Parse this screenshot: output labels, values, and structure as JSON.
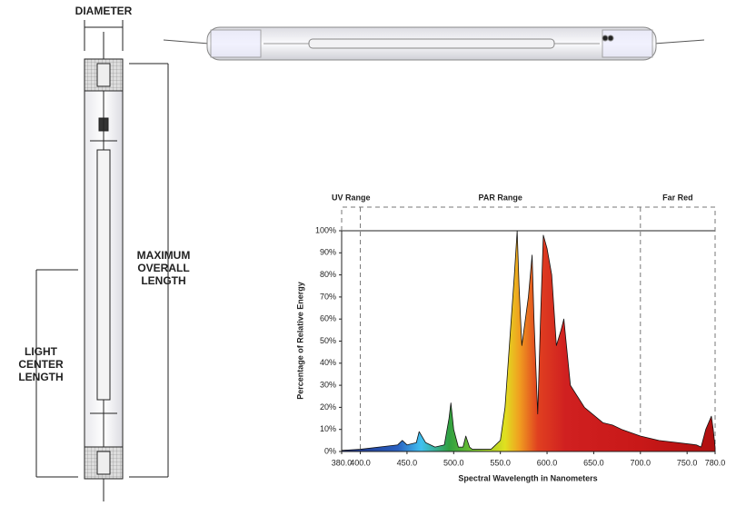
{
  "diagram": {
    "diameter_label": "DIAMETER",
    "overall_label": [
      "MAXIMUM",
      "OVERALL",
      "LENGTH"
    ],
    "center_label": [
      "LIGHT",
      "CENTER",
      "LENGTH"
    ]
  },
  "chart_data": {
    "type": "area",
    "x_label": "Spectral Wavelength in Nanometers",
    "y_label": "Percentage of Relative Energy",
    "regions": [
      {
        "name": "UV Range",
        "start": 380,
        "end": 400
      },
      {
        "name": "PAR Range",
        "start": 400,
        "end": 700
      },
      {
        "name": "Far Red",
        "start": 700,
        "end": 780
      }
    ],
    "x": [
      380,
      400,
      420,
      440,
      445,
      450,
      460,
      463,
      470,
      480,
      490,
      495,
      497,
      500,
      505,
      510,
      513,
      517,
      520,
      540,
      550,
      555,
      560,
      565,
      568,
      570,
      573,
      580,
      584,
      586,
      590,
      593,
      596,
      600,
      605,
      610,
      615,
      618,
      625,
      640,
      660,
      670,
      680,
      700,
      720,
      740,
      760,
      765,
      770,
      776,
      778,
      780
    ],
    "series": [
      {
        "name": "Relative Energy",
        "values": [
          0.5,
          1,
          2,
          3,
          5,
          3,
          4,
          9,
          4,
          2,
          3,
          15,
          22,
          10,
          2,
          2,
          7,
          2,
          1,
          1,
          5,
          20,
          50,
          80,
          100,
          75,
          48,
          70,
          89,
          60,
          17,
          60,
          98,
          92,
          80,
          48,
          55,
          60,
          30,
          20,
          13,
          12,
          10,
          7,
          5,
          4,
          3,
          2,
          10,
          16,
          10,
          2
        ]
      }
    ],
    "colors": [
      [
        380,
        "#1a2a80"
      ],
      [
        440,
        "#2a60c0"
      ],
      [
        465,
        "#40c0f0"
      ],
      [
        495,
        "#30a040"
      ],
      [
        520,
        "#70c030"
      ],
      [
        555,
        "#e0e020"
      ],
      [
        570,
        "#f0a020"
      ],
      [
        590,
        "#e04020"
      ],
      [
        620,
        "#d02020"
      ],
      [
        700,
        "#c81818"
      ],
      [
        780,
        "#b01010"
      ]
    ],
    "xlim": [
      380,
      780
    ],
    "xticks": [
      {
        "value": 380,
        "label": "380.0"
      },
      {
        "value": 400,
        "label": "400.0"
      },
      {
        "value": 450,
        "label": "450.0"
      },
      {
        "value": 500,
        "label": "500.0"
      },
      {
        "value": 550,
        "label": "550.0"
      },
      {
        "value": 600,
        "label": "600.0"
      },
      {
        "value": 650,
        "label": "650.0"
      },
      {
        "value": 700,
        "label": "700.0"
      },
      {
        "value": 750,
        "label": "750.0"
      },
      {
        "value": 780,
        "label": "780.0"
      }
    ],
    "ylim": [
      0,
      100
    ],
    "yticks": [
      {
        "value": 0,
        "label": "0%"
      },
      {
        "value": 10,
        "label": "10%"
      },
      {
        "value": 20,
        "label": "20%"
      },
      {
        "value": 30,
        "label": "30%"
      },
      {
        "value": 40,
        "label": "40%"
      },
      {
        "value": 50,
        "label": "50%"
      },
      {
        "value": 60,
        "label": "60%"
      },
      {
        "value": 70,
        "label": "70%"
      },
      {
        "value": 80,
        "label": "80%"
      },
      {
        "value": 90,
        "label": "90%"
      },
      {
        "value": 100,
        "label": "100%"
      }
    ]
  }
}
